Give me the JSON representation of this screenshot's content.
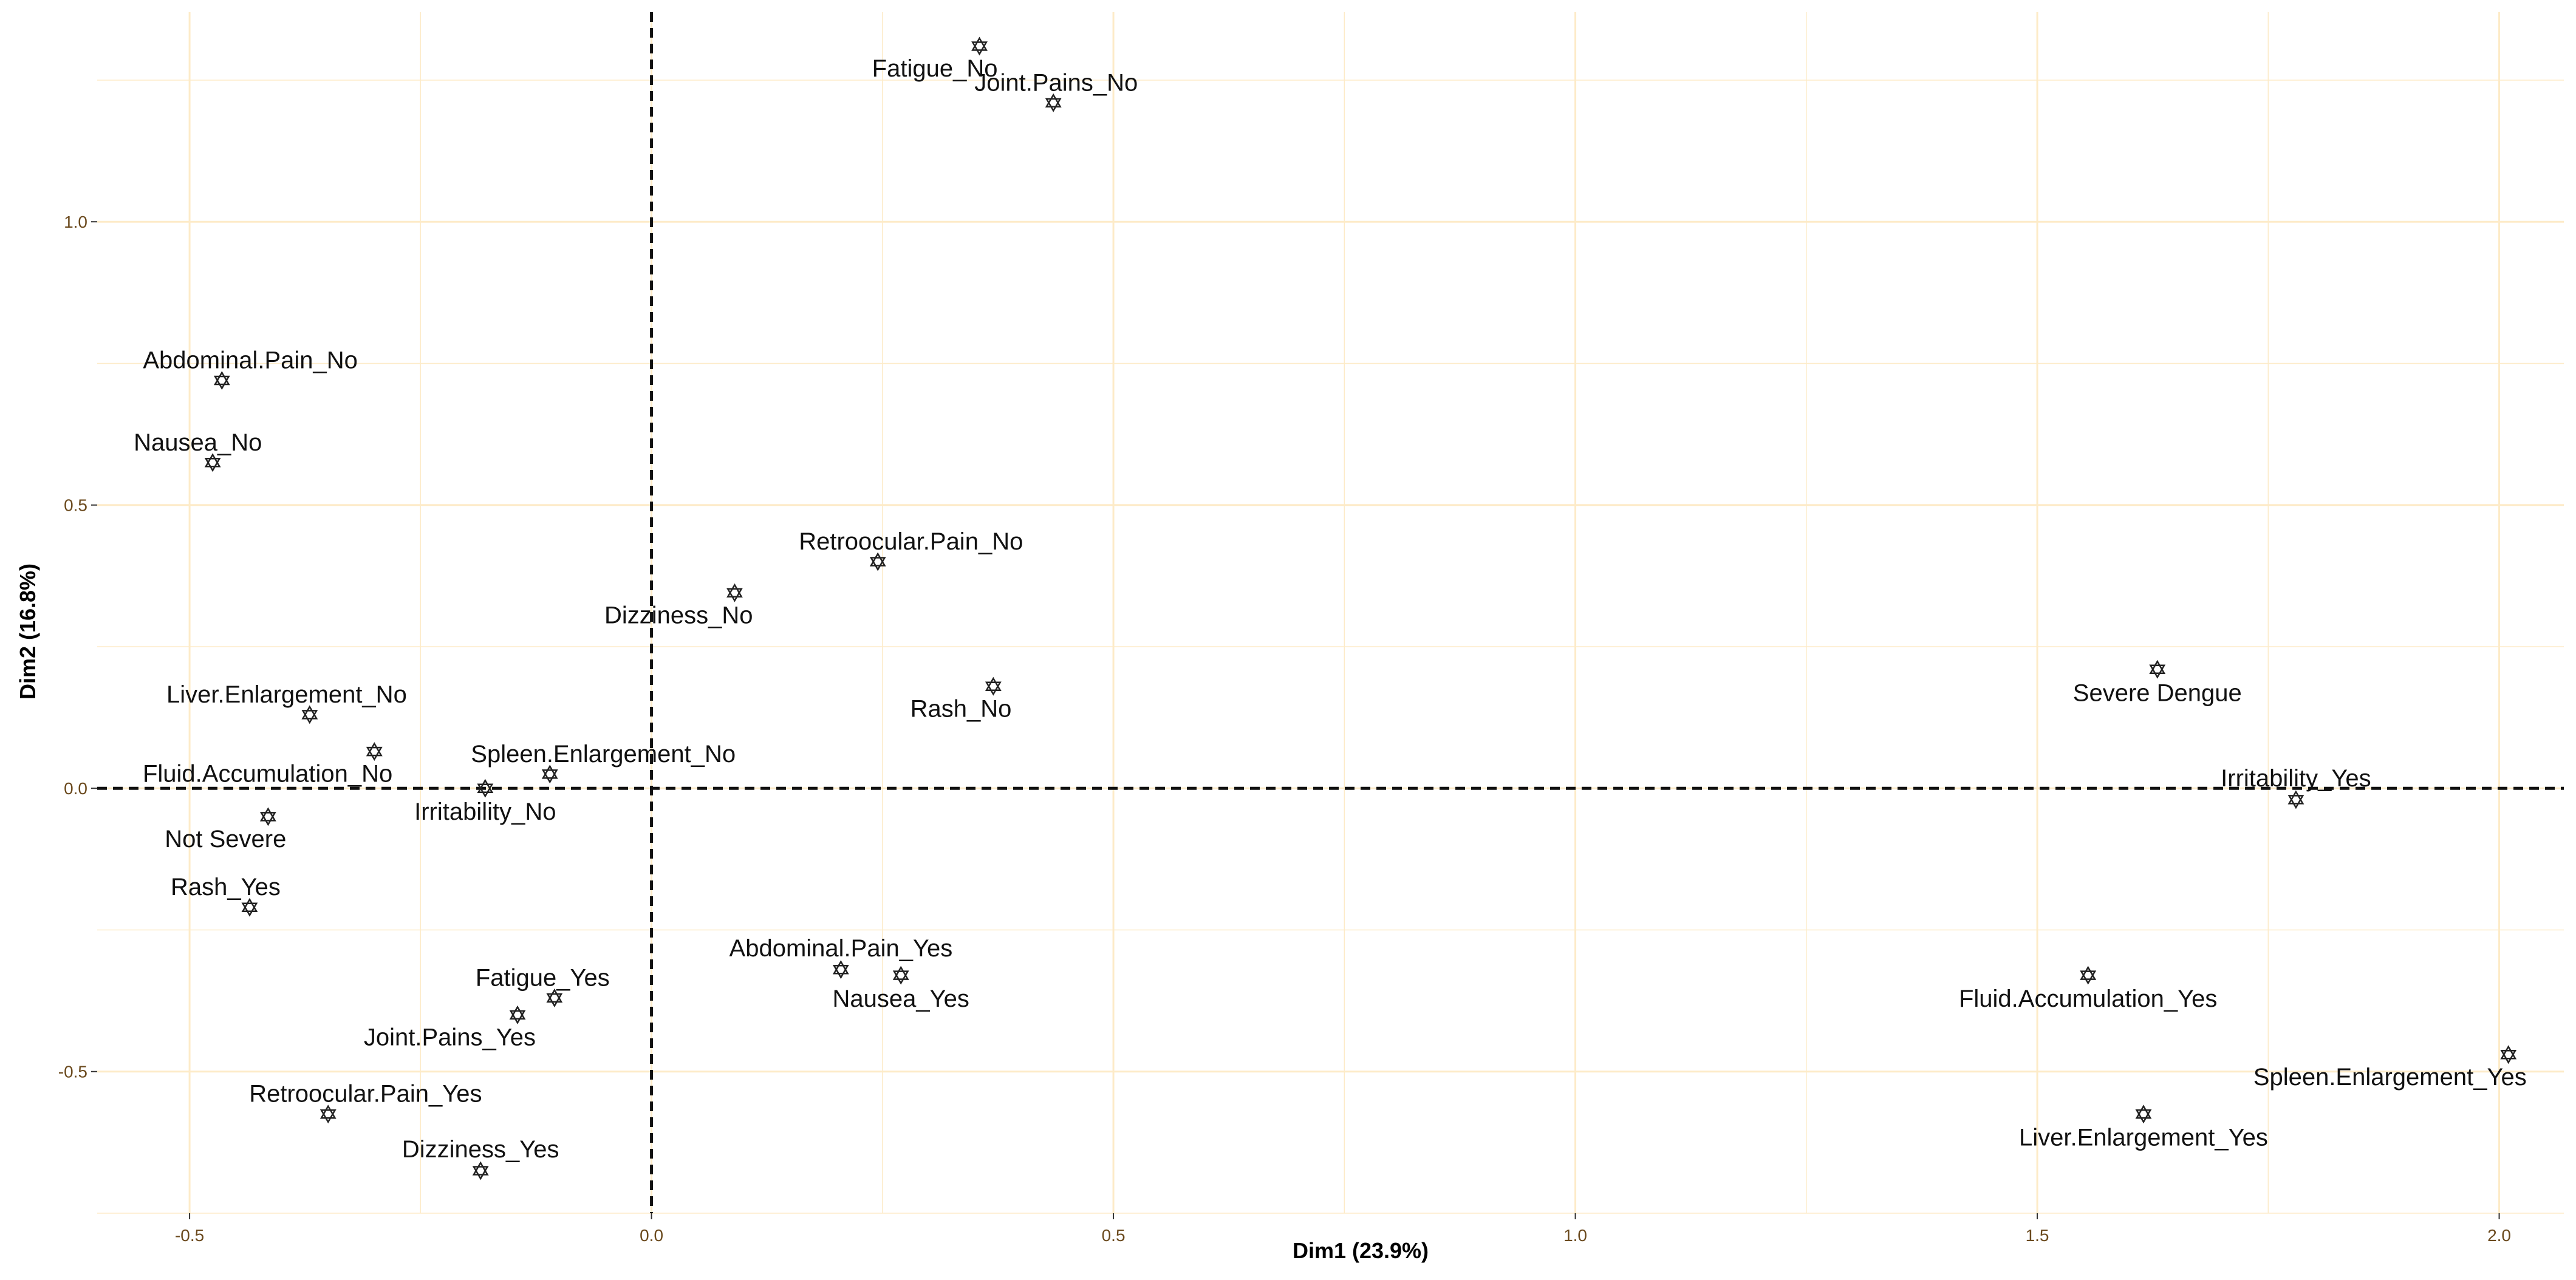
{
  "chart_data": {
    "type": "scatter",
    "title": "",
    "xlabel": "Dim1 (23.9%)",
    "ylabel": "Dim2 (16.8%)",
    "xlim": [
      -0.6,
      2.07
    ],
    "ylim": [
      -0.75,
      1.37
    ],
    "x_ticks": [
      -0.5,
      0.0,
      0.5,
      1.0,
      1.5,
      2.0
    ],
    "x_tick_labels": [
      "-0.5",
      "0.0",
      "0.5",
      "1.0",
      "1.5",
      "2.0"
    ],
    "y_ticks": [
      -0.5,
      0.0,
      0.5,
      1.0
    ],
    "y_tick_labels": [
      "-0.5",
      "0.0",
      "0.5",
      "1.0"
    ],
    "grid": true,
    "grid_color": "#fdebc8",
    "reference_lines": {
      "x": 0,
      "y": 0,
      "style": "dashed"
    },
    "marker": "star",
    "points": [
      {
        "label": "Fatigue_No",
        "x": 0.355,
        "y": 1.31,
        "pos": "bl"
      },
      {
        "label": "Joint.Pains_No",
        "x": 0.435,
        "y": 1.21,
        "pos": "ar"
      },
      {
        "label": "Abdominal.Pain_No",
        "x": -0.465,
        "y": 0.72,
        "pos": "ar"
      },
      {
        "label": "Nausea_No",
        "x": -0.475,
        "y": 0.575,
        "pos": "ar"
      },
      {
        "label": "Retroocular.Pain_No",
        "x": 0.245,
        "y": 0.4,
        "pos": "ar"
      },
      {
        "label": "Dizziness_No",
        "x": 0.09,
        "y": 0.345,
        "pos": "bl"
      },
      {
        "label": "Liver.Enlargement_No",
        "x": -0.37,
        "y": 0.13,
        "pos": "al"
      },
      {
        "label": "Rash_No",
        "x": 0.37,
        "y": 0.18,
        "pos": "bl"
      },
      {
        "label": "Severe Dengue",
        "x": 1.63,
        "y": 0.21,
        "pos": "b"
      },
      {
        "label": "Fluid.Accumulation_No",
        "x": -0.3,
        "y": 0.065,
        "pos": "bl"
      },
      {
        "label": "Spleen.Enlargement_No",
        "x": -0.11,
        "y": 0.025,
        "pos": "ar"
      },
      {
        "label": "Irritability_No",
        "x": -0.18,
        "y": 0.0,
        "pos": "b"
      },
      {
        "label": "Not Severe",
        "x": -0.415,
        "y": -0.05,
        "pos": "bl"
      },
      {
        "label": "Irritability_Yes",
        "x": 1.78,
        "y": -0.02,
        "pos": "a"
      },
      {
        "label": "Rash_Yes",
        "x": -0.435,
        "y": -0.21,
        "pos": "ar"
      },
      {
        "label": "Abdominal.Pain_Yes",
        "x": 0.205,
        "y": -0.32,
        "pos": "a"
      },
      {
        "label": "Nausea_Yes",
        "x": 0.27,
        "y": -0.33,
        "pos": "b"
      },
      {
        "label": "Fatigue_Yes",
        "x": -0.105,
        "y": -0.37,
        "pos": "ar"
      },
      {
        "label": "Joint.Pains_Yes",
        "x": -0.145,
        "y": -0.4,
        "pos": "bl"
      },
      {
        "label": "Fluid.Accumulation_Yes",
        "x": 1.555,
        "y": -0.33,
        "pos": "b"
      },
      {
        "label": "Spleen.Enlargement_Yes",
        "x": 2.01,
        "y": -0.47,
        "pos": "bl"
      },
      {
        "label": "Retroocular.Pain_Yes",
        "x": -0.35,
        "y": -0.575,
        "pos": "ar"
      },
      {
        "label": "Liver.Enlargement_Yes",
        "x": 1.615,
        "y": -0.575,
        "pos": "b"
      },
      {
        "label": "Dizziness_Yes",
        "x": -0.185,
        "y": -0.675,
        "pos": "a"
      }
    ]
  }
}
